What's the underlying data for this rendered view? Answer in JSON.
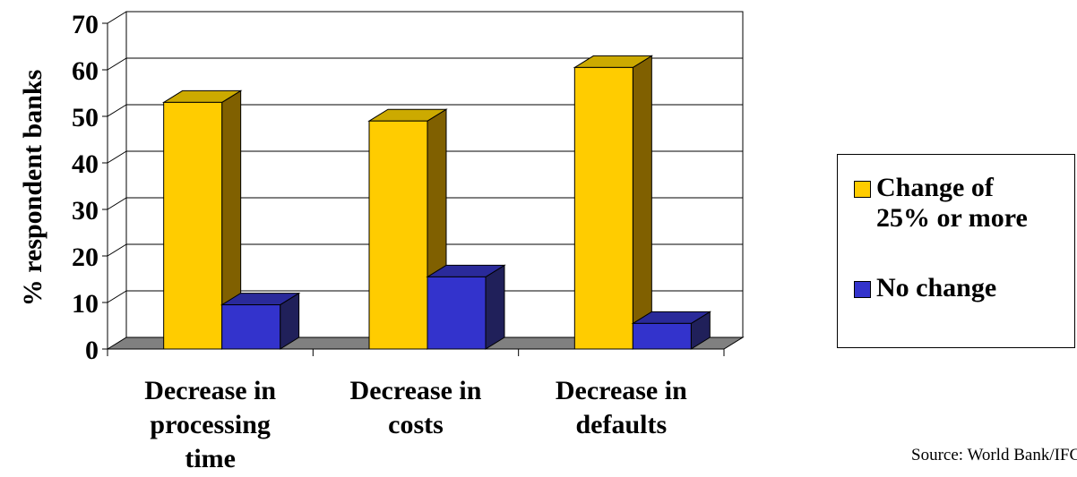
{
  "chart_data": {
    "type": "bar",
    "title": "",
    "xlabel": "",
    "ylabel": "% respondent banks",
    "ylim": [
      0,
      70
    ],
    "yticks": [
      0,
      10,
      20,
      30,
      40,
      50,
      60,
      70
    ],
    "grid": true,
    "three_d": true,
    "legend_placement": "right",
    "categories": [
      "Decrease in processing time",
      "Decrease in costs",
      "Decrease in defaults"
    ],
    "category_lines": [
      [
        "Decrease in",
        "processing",
        "time"
      ],
      [
        "Decrease in",
        "costs"
      ],
      [
        "Decrease in",
        "defaults"
      ]
    ],
    "series": [
      {
        "name": "Change of 25% or more",
        "name_lines": [
          "Change of",
          "25% or more"
        ],
        "values": [
          53,
          49,
          60.5
        ],
        "color": "#ffcc00",
        "top_color": "#ccaa00",
        "side_color": "#806000"
      },
      {
        "name": "No change",
        "name_lines": [
          "No change"
        ],
        "values": [
          9.5,
          15.5,
          5.5
        ],
        "color": "#3333cc",
        "top_color": "#2a2a9a",
        "side_color": "#20205a"
      }
    ],
    "floor_color": "#808080",
    "source": "Source: World Bank/IFC"
  }
}
